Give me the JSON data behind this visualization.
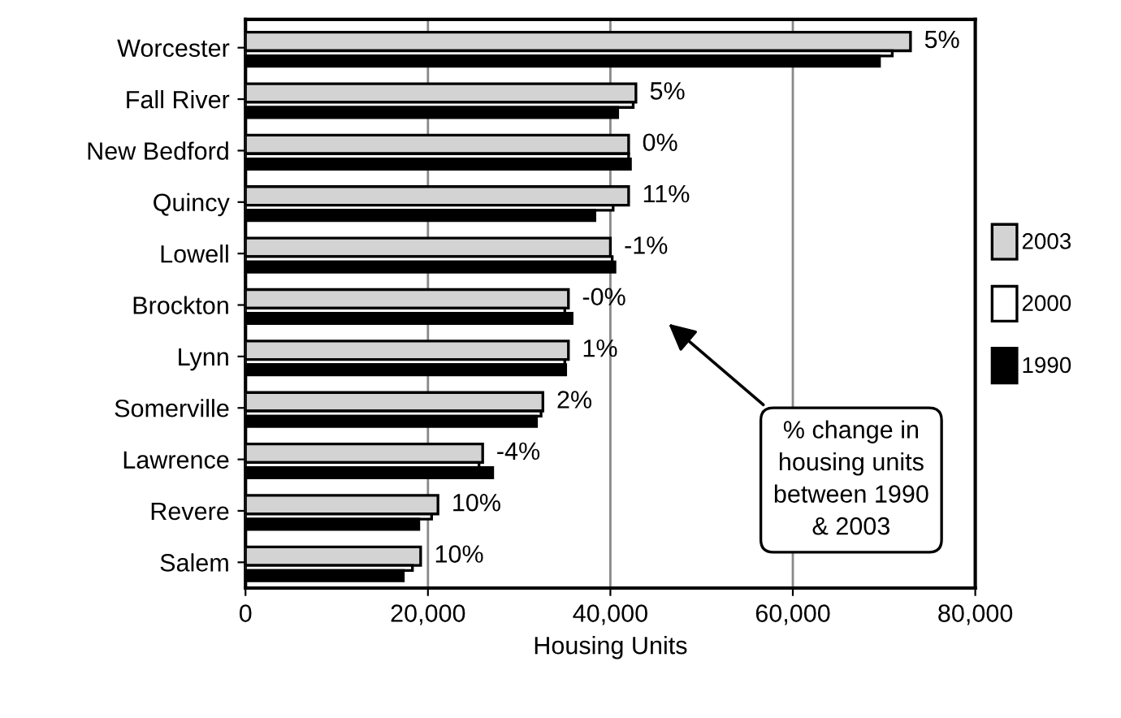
{
  "chart_data": {
    "type": "bar",
    "orientation": "horizontal",
    "xlabel": "Housing Units",
    "categories": [
      "Worcester",
      "Fall River",
      "New Bedford",
      "Quincy",
      "Lowell",
      "Brockton",
      "Lynn",
      "Somerville",
      "Lawrence",
      "Revere",
      "Salem"
    ],
    "series": [
      {
        "name": "2003",
        "color": "#d3d3d3",
        "values": [
          72900,
          42800,
          42000,
          42000,
          40000,
          35400,
          35400,
          32600,
          26000,
          21100,
          19200
        ]
      },
      {
        "name": "2000",
        "color": "#ffffff",
        "values": [
          70900,
          42500,
          42000,
          40300,
          40200,
          35000,
          35000,
          32400,
          25600,
          20400,
          18300
        ]
      },
      {
        "name": "1990",
        "color": "#000000",
        "values": [
          69500,
          40800,
          42200,
          38300,
          40500,
          35800,
          35100,
          31900,
          27100,
          19000,
          17300
        ]
      }
    ],
    "xlim": [
      0,
      80000
    ],
    "xticks": [
      {
        "value": 0,
        "label": "0"
      },
      {
        "value": 20000,
        "label": "20,000"
      },
      {
        "value": 40000,
        "label": "40,000"
      },
      {
        "value": 60000,
        "label": "60,000"
      },
      {
        "value": 80000,
        "label": "80,000"
      }
    ],
    "grid": "x",
    "legend": "right",
    "annotations": [
      "% change in\nhousing units\nbetween 1990\n& 2003",
      {
        "text": "5%",
        "x": 72900,
        "y": "Worcester"
      },
      {
        "text": "5%",
        "x": 42800,
        "y": "Fall River"
      },
      {
        "text": "0%",
        "x": 42000,
        "y": "New Bedford"
      },
      {
        "text": "11%",
        "x": 42000,
        "y": "Quincy"
      },
      {
        "text": "-1%",
        "x": 40000,
        "y": "Lowell"
      },
      {
        "text": "-0%",
        "x": 35400,
        "y": "Brockton"
      },
      {
        "text": "1%",
        "x": 35400,
        "y": "Lynn"
      },
      {
        "text": "2%",
        "x": 32600,
        "y": "Somerville"
      },
      {
        "text": "-4%",
        "x": 26000,
        "y": "Lawrence"
      },
      {
        "text": "10%",
        "x": 21100,
        "y": "Revere"
      },
      {
        "text": "10%",
        "x": 19200,
        "y": "Salem"
      }
    ]
  }
}
